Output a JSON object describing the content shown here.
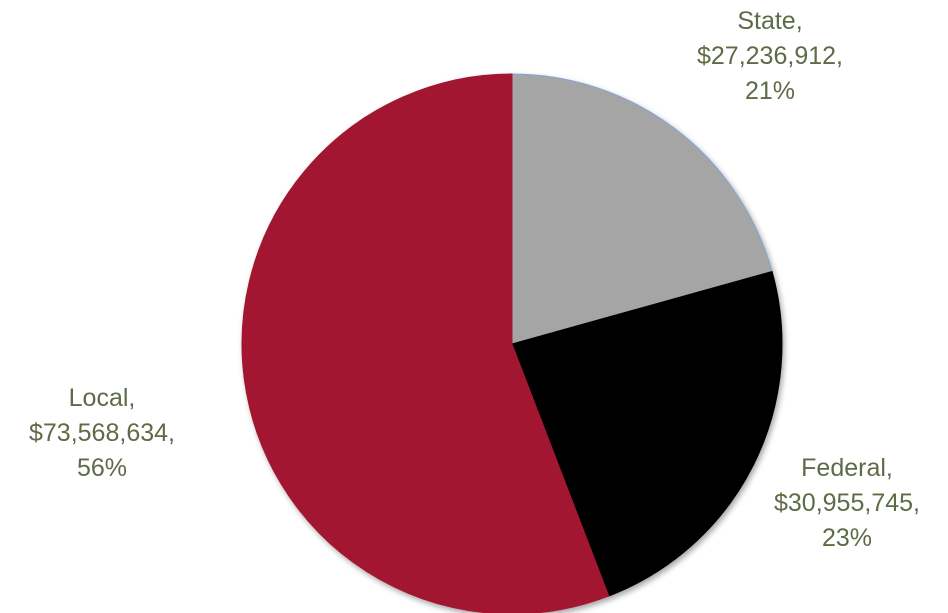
{
  "chart_data": {
    "type": "pie",
    "title": "",
    "slices": [
      {
        "label": "State",
        "value": 27236912,
        "value_text": "$27,236,912",
        "percent_text": "21%",
        "color": "#a5a5a5"
      },
      {
        "label": "Federal",
        "value": 30955745,
        "value_text": "$30,955,745",
        "percent_text": "23%",
        "color": "#000000"
      },
      {
        "label": "Local",
        "value": 73568634,
        "value_text": "$73,568,634",
        "percent_text": "56%",
        "color": "#a21930"
      }
    ],
    "start_angle_deg": 0,
    "direction": "clockwise",
    "legend": "none",
    "label_color": "#5f6b47"
  }
}
